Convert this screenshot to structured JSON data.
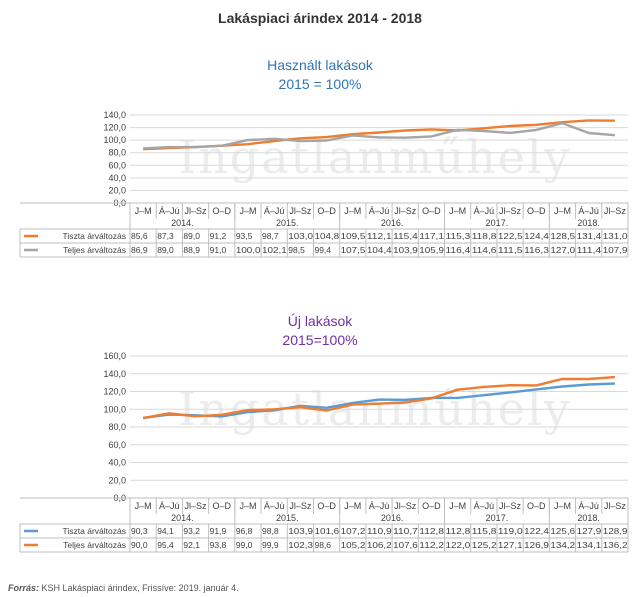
{
  "page": {
    "title": "Lakáspiaci árindex 2014 - 2018",
    "source_label": "Forrás:",
    "source_text": "KSH Lakáspiaci árindex, Frissíve: 2019. január 4.",
    "watermark": "Ingatlanműhely"
  },
  "colors": {
    "orange": "#ed7d31",
    "gray": "#a5a5a5",
    "blue": "#5b9bd5"
  },
  "chart_data": [
    {
      "type": "line",
      "title": "Használt lakások",
      "subtitle": "2015 = 100%",
      "categories": [
        "J–M",
        "Á–Jú",
        "Jl–Sz",
        "O–D",
        "J–M",
        "Á–Jú",
        "Jl–Sz",
        "O–D",
        "J–M",
        "Á–Jú",
        "Jl–Sz",
        "O–D",
        "J–M",
        "Á–Jú",
        "Jl–Sz",
        "O–D",
        "J–M",
        "Á–Jú",
        "Jl–Sz"
      ],
      "year_groups": [
        {
          "label": "2014.",
          "count": 4
        },
        {
          "label": "2015.",
          "count": 4
        },
        {
          "label": "2016.",
          "count": 4
        },
        {
          "label": "2017.",
          "count": 4
        },
        {
          "label": "2018.",
          "count": 3
        }
      ],
      "y_ticks": [
        "0,0",
        "20,0",
        "40,0",
        "60,0",
        "80,0",
        "100,0",
        "120,0",
        "140,0"
      ],
      "ylim": [
        0,
        140
      ],
      "series": [
        {
          "name": "Tiszta árváltozás",
          "color": "#ed7d31",
          "values": [
            85.6,
            87.3,
            89.0,
            91.2,
            93.5,
            98.7,
            103.0,
            104.8,
            109.5,
            112.1,
            115.4,
            117.1,
            115.3,
            118.8,
            122.5,
            124.4,
            128.5,
            131.4,
            131.0
          ],
          "labels": [
            "85,6",
            "87,3",
            "89,0",
            "91,2",
            "93,5",
            "98,7",
            "103,0",
            "104,8",
            "109,5",
            "112,1",
            "115,4",
            "117,1",
            "115,3",
            "118,8",
            "122,5",
            "124,4",
            "128,5",
            "131,4",
            "131,0"
          ]
        },
        {
          "name": "Teljes árváltozás",
          "color": "#a5a5a5",
          "values": [
            86.9,
            89.0,
            88.9,
            91.0,
            100.0,
            102.1,
            98.5,
            99.4,
            107.5,
            104.4,
            103.9,
            105.9,
            116.4,
            114.6,
            111.5,
            116.3,
            127.0,
            111.4,
            107.9
          ],
          "labels": [
            "86,9",
            "89,0",
            "88,9",
            "91,0",
            "100,0",
            "102,1",
            "98,5",
            "99,4",
            "107,5",
            "104,4",
            "103,9",
            "105,9",
            "116,4",
            "114,6",
            "111,5",
            "116,3",
            "127,0",
            "111,4",
            "107,9"
          ]
        }
      ]
    },
    {
      "type": "line",
      "title": "Új lakások",
      "subtitle": "2015=100%",
      "categories": [
        "J–M",
        "Á–Jú",
        "Jl–Sz",
        "O–D",
        "J–M",
        "Á–Jú",
        "Jl–Sz",
        "O–D",
        "J–M",
        "Á–Jú",
        "Jl–Sz",
        "O–D",
        "J–M",
        "Á–Jú",
        "Jl–Sz",
        "O–D",
        "J–M",
        "Á–Jú",
        "Jl–Sz"
      ],
      "year_groups": [
        {
          "label": "2014.",
          "count": 4
        },
        {
          "label": "2015.",
          "count": 4
        },
        {
          "label": "2016.",
          "count": 4
        },
        {
          "label": "2017.",
          "count": 4
        },
        {
          "label": "2018.",
          "count": 3
        }
      ],
      "y_ticks": [
        "0,0",
        "20,0",
        "40,0",
        "60,0",
        "80,0",
        "100,0",
        "120,0",
        "140,0",
        "160,0"
      ],
      "ylim": [
        0,
        160
      ],
      "series": [
        {
          "name": "Tiszta árváltozás",
          "color": "#5b9bd5",
          "values": [
            90.3,
            94.1,
            93.2,
            91.9,
            96.8,
            98.8,
            103.9,
            101.6,
            107.2,
            110.9,
            110.7,
            112.8,
            112.8,
            115.8,
            119.0,
            122.4,
            125.6,
            127.9,
            128.9
          ],
          "labels": [
            "90,3",
            "94,1",
            "93,2",
            "91,9",
            "96,8",
            "98,8",
            "103,9",
            "101,6",
            "107,2",
            "110,9",
            "110,7",
            "112,8",
            "112,8",
            "115,8",
            "119,0",
            "122,4",
            "125,6",
            "127,9",
            "128,9"
          ]
        },
        {
          "name": "Teljes árváltozás",
          "color": "#ed7d31",
          "values": [
            90.0,
            95.4,
            92.1,
            93.8,
            99.0,
            99.9,
            102.3,
            98.6,
            105.2,
            106.2,
            107.6,
            112.2,
            122.0,
            125.2,
            127.1,
            126.9,
            134.2,
            134.1,
            136.2
          ],
          "labels": [
            "90,0",
            "95,4",
            "92,1",
            "93,8",
            "99,0",
            "99,9",
            "102,3",
            "98,6",
            "105,2",
            "106,2",
            "107,6",
            "112,2",
            "122,0",
            "125,2",
            "127,1",
            "126,9",
            "134,2",
            "134,1",
            "136,2"
          ]
        }
      ]
    }
  ]
}
